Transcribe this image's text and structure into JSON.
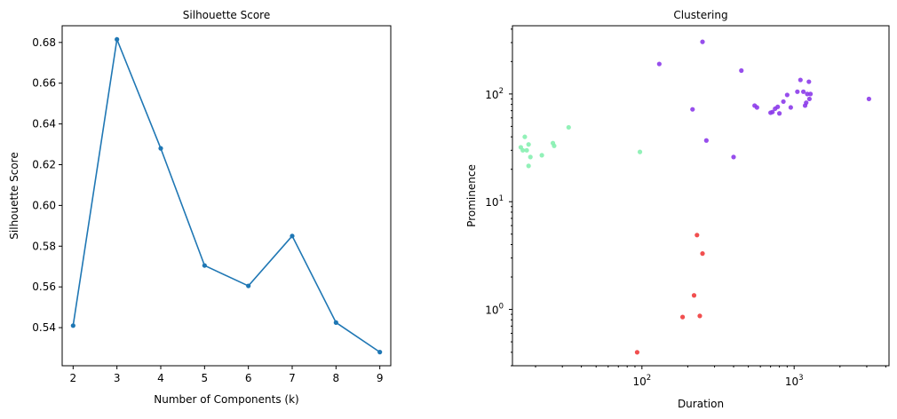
{
  "chart_data": [
    {
      "type": "line",
      "title": "Silhouette Score",
      "xlabel": "Number of Components (k)",
      "ylabel": "Silhouette Score",
      "x": [
        2,
        3,
        4,
        5,
        6,
        7,
        8,
        9
      ],
      "series": [
        {
          "values": [
            0.541,
            0.6815,
            0.628,
            0.5705,
            0.5605,
            0.585,
            0.5425,
            0.528
          ],
          "color": "#1f77b4"
        }
      ],
      "xlim": [
        1.75,
        9.25
      ],
      "ylim": [
        0.5213,
        0.6882
      ],
      "xticks": [
        2,
        3,
        4,
        5,
        6,
        7,
        8,
        9
      ],
      "yticks": [
        0.54,
        0.56,
        0.58,
        0.6,
        0.62,
        0.64,
        0.66,
        0.68
      ],
      "ytick_labels": [
        "0.54",
        "0.56",
        "0.58",
        "0.60",
        "0.62",
        "0.64",
        "0.66",
        "0.68"
      ],
      "grid": false
    },
    {
      "type": "scatter",
      "title": "Clustering",
      "xlabel": "Duration",
      "ylabel": "Prominence",
      "x_scale": "log",
      "y_scale": "log",
      "xlim": [
        14.1,
        4200
      ],
      "ylim": [
        0.3,
        430
      ],
      "xticks": [
        100,
        1000
      ],
      "yticks": [
        1,
        10,
        100
      ],
      "grid": false,
      "series": [
        {
          "color": "#8c3bea",
          "points": [
            [
              130,
              190
            ],
            [
              250,
              305
            ],
            [
              450,
              165
            ],
            [
              215,
              72
            ],
            [
              265,
              37
            ],
            [
              400,
              26
            ],
            [
              550,
              78
            ],
            [
              570,
              75
            ],
            [
              700,
              67
            ],
            [
              720,
              68
            ],
            [
              750,
              73
            ],
            [
              780,
              76
            ],
            [
              800,
              66
            ],
            [
              850,
              85
            ],
            [
              900,
              98
            ],
            [
              950,
              75
            ],
            [
              1050,
              105
            ],
            [
              1100,
              135
            ],
            [
              1150,
              105
            ],
            [
              1180,
              78
            ],
            [
              1200,
              83
            ],
            [
              1220,
              100
            ],
            [
              1250,
              130
            ],
            [
              1260,
              90
            ],
            [
              1280,
              100
            ],
            [
              3100,
              90
            ]
          ]
        },
        {
          "color": "#86f0b0",
          "points": [
            [
              16,
              32
            ],
            [
              16.5,
              30
            ],
            [
              17,
              40
            ],
            [
              17.5,
              30
            ],
            [
              18,
              34
            ],
            [
              18,
              21.5
            ],
            [
              18.5,
              26
            ],
            [
              22,
              27
            ],
            [
              26,
              35
            ],
            [
              26.5,
              33
            ],
            [
              33,
              49
            ],
            [
              97,
              29
            ]
          ]
        },
        {
          "color": "#f03c3c",
          "points": [
            [
              93,
              0.4
            ],
            [
              185,
              0.85
            ],
            [
              220,
              1.35
            ],
            [
              230,
              4.9
            ],
            [
              240,
              0.87
            ],
            [
              250,
              3.3
            ]
          ]
        }
      ]
    }
  ]
}
